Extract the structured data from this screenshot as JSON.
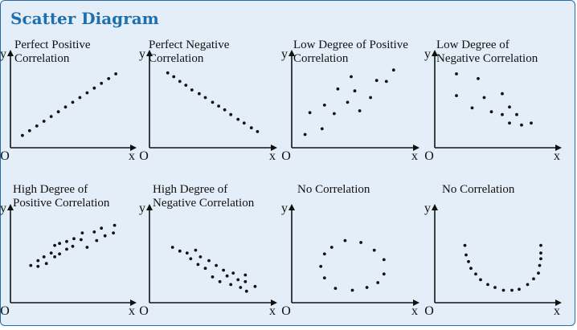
{
  "title": "Scatter Diagram",
  "colors": {
    "background": "#e4eef8",
    "border": "#2a6aa8",
    "title": "#1f6fad",
    "ink": "#111111"
  },
  "axis_labels": {
    "x": "x",
    "y": "y",
    "origin": "O"
  },
  "panels": [
    {
      "id": "perfect-positive",
      "label": [
        "Perfect Positive",
        "Correlation"
      ],
      "points": [
        [
          0.1,
          0.13
        ],
        [
          0.16,
          0.18
        ],
        [
          0.22,
          0.23
        ],
        [
          0.28,
          0.28
        ],
        [
          0.34,
          0.33
        ],
        [
          0.4,
          0.38
        ],
        [
          0.46,
          0.43
        ],
        [
          0.52,
          0.48
        ],
        [
          0.58,
          0.53
        ],
        [
          0.64,
          0.58
        ],
        [
          0.7,
          0.63
        ],
        [
          0.76,
          0.68
        ],
        [
          0.82,
          0.73
        ],
        [
          0.88,
          0.78
        ]
      ]
    },
    {
      "id": "perfect-negative",
      "label": [
        "Perfect Negative",
        "Correlation"
      ],
      "points": [
        [
          0.15,
          0.79
        ],
        [
          0.2,
          0.75
        ],
        [
          0.25,
          0.7
        ],
        [
          0.3,
          0.66
        ],
        [
          0.35,
          0.61
        ],
        [
          0.41,
          0.57
        ],
        [
          0.46,
          0.53
        ],
        [
          0.52,
          0.48
        ],
        [
          0.57,
          0.44
        ],
        [
          0.62,
          0.4
        ],
        [
          0.67,
          0.35
        ],
        [
          0.73,
          0.3
        ],
        [
          0.78,
          0.26
        ],
        [
          0.84,
          0.21
        ],
        [
          0.89,
          0.17
        ]
      ]
    },
    {
      "id": "low-positive",
      "label": [
        "Low Degree of Positive",
        "Correlation"
      ],
      "points": [
        [
          0.11,
          0.14
        ],
        [
          0.15,
          0.37
        ],
        [
          0.25,
          0.2
        ],
        [
          0.27,
          0.45
        ],
        [
          0.35,
          0.36
        ],
        [
          0.38,
          0.62
        ],
        [
          0.46,
          0.48
        ],
        [
          0.49,
          0.75
        ],
        [
          0.52,
          0.6
        ],
        [
          0.56,
          0.39
        ],
        [
          0.65,
          0.53
        ],
        [
          0.7,
          0.71
        ],
        [
          0.78,
          0.7
        ],
        [
          0.84,
          0.82
        ]
      ]
    },
    {
      "id": "low-negative",
      "label": [
        "Low Degree of",
        "Negative Correlation"
      ],
      "points": [
        [
          0.18,
          0.78
        ],
        [
          0.18,
          0.55
        ],
        [
          0.31,
          0.42
        ],
        [
          0.36,
          0.73
        ],
        [
          0.41,
          0.53
        ],
        [
          0.47,
          0.38
        ],
        [
          0.56,
          0.57
        ],
        [
          0.56,
          0.35
        ],
        [
          0.62,
          0.43
        ],
        [
          0.62,
          0.26
        ],
        [
          0.68,
          0.35
        ],
        [
          0.72,
          0.24
        ],
        [
          0.8,
          0.26
        ]
      ]
    },
    {
      "id": "high-positive",
      "label": [
        "High Degree of",
        "Positive Correlation"
      ],
      "points": [
        [
          0.17,
          0.39
        ],
        [
          0.23,
          0.38
        ],
        [
          0.23,
          0.44
        ],
        [
          0.28,
          0.48
        ],
        [
          0.3,
          0.41
        ],
        [
          0.34,
          0.52
        ],
        [
          0.37,
          0.6
        ],
        [
          0.37,
          0.48
        ],
        [
          0.41,
          0.51
        ],
        [
          0.41,
          0.62
        ],
        [
          0.47,
          0.56
        ],
        [
          0.47,
          0.64
        ],
        [
          0.52,
          0.59
        ],
        [
          0.53,
          0.67
        ],
        [
          0.59,
          0.66
        ],
        [
          0.6,
          0.73
        ],
        [
          0.64,
          0.58
        ],
        [
          0.7,
          0.74
        ],
        [
          0.72,
          0.65
        ],
        [
          0.76,
          0.78
        ],
        [
          0.79,
          0.7
        ],
        [
          0.87,
          0.81
        ],
        [
          0.86,
          0.73
        ]
      ]
    },
    {
      "id": "high-negative",
      "label": [
        "High Degree of",
        "Negative Correlation"
      ],
      "points": [
        [
          0.19,
          0.58
        ],
        [
          0.25,
          0.54
        ],
        [
          0.31,
          0.52
        ],
        [
          0.34,
          0.46
        ],
        [
          0.38,
          0.55
        ],
        [
          0.4,
          0.4
        ],
        [
          0.42,
          0.48
        ],
        [
          0.46,
          0.36
        ],
        [
          0.49,
          0.44
        ],
        [
          0.52,
          0.27
        ],
        [
          0.55,
          0.39
        ],
        [
          0.58,
          0.22
        ],
        [
          0.61,
          0.34
        ],
        [
          0.64,
          0.28
        ],
        [
          0.67,
          0.19
        ],
        [
          0.69,
          0.31
        ],
        [
          0.73,
          0.24
        ],
        [
          0.75,
          0.16
        ],
        [
          0.79,
          0.29
        ],
        [
          0.79,
          0.22
        ],
        [
          0.8,
          0.12
        ],
        [
          0.87,
          0.17
        ]
      ]
    },
    {
      "id": "no-correlation-circle",
      "label": [
        "No Correlation"
      ],
      "points": [
        [
          0.44,
          0.65
        ],
        [
          0.57,
          0.63
        ],
        [
          0.33,
          0.58
        ],
        [
          0.68,
          0.55
        ],
        [
          0.27,
          0.51
        ],
        [
          0.76,
          0.45
        ],
        [
          0.24,
          0.38
        ],
        [
          0.76,
          0.3
        ],
        [
          0.27,
          0.26
        ],
        [
          0.71,
          0.21
        ],
        [
          0.36,
          0.15
        ],
        [
          0.62,
          0.16
        ],
        [
          0.5,
          0.13
        ]
      ]
    },
    {
      "id": "no-correlation-u",
      "label": [
        "No Correlation"
      ],
      "points": [
        [
          0.25,
          0.6
        ],
        [
          0.26,
          0.5
        ],
        [
          0.28,
          0.43
        ],
        [
          0.3,
          0.36
        ],
        [
          0.34,
          0.3
        ],
        [
          0.38,
          0.24
        ],
        [
          0.44,
          0.19
        ],
        [
          0.5,
          0.16
        ],
        [
          0.57,
          0.13
        ],
        [
          0.64,
          0.13
        ],
        [
          0.7,
          0.14
        ],
        [
          0.77,
          0.19
        ],
        [
          0.82,
          0.25
        ],
        [
          0.86,
          0.31
        ],
        [
          0.87,
          0.39
        ],
        [
          0.88,
          0.46
        ],
        [
          0.88,
          0.52
        ],
        [
          0.88,
          0.6
        ]
      ]
    }
  ]
}
